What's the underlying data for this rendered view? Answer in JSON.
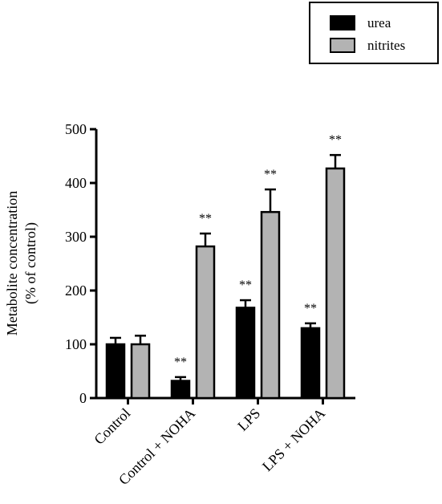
{
  "chart_data": {
    "type": "bar",
    "title": "",
    "xlabel": "",
    "ylabel": "Metabolite concentration",
    "ylabel_sub": "(% of control)",
    "ylim": [
      0,
      500
    ],
    "yticks": [
      0,
      100,
      200,
      300,
      400,
      500
    ],
    "grid": false,
    "legend_position": "top-right",
    "categories": [
      "Control",
      "Control + NOHA",
      "LPS",
      "LPS + NOHA"
    ],
    "series": [
      {
        "name": "urea",
        "color": "#000000",
        "values": [
          100,
          32,
          168,
          130
        ],
        "errors": [
          12,
          7,
          14,
          9
        ],
        "annotations": [
          "",
          "**",
          "**",
          "**"
        ]
      },
      {
        "name": "nitrites",
        "color": "#b3b3b3",
        "values": [
          100,
          282,
          346,
          427
        ],
        "errors": [
          16,
          24,
          42,
          25
        ],
        "annotations": [
          "",
          "**",
          "**",
          "**"
        ]
      }
    ]
  }
}
